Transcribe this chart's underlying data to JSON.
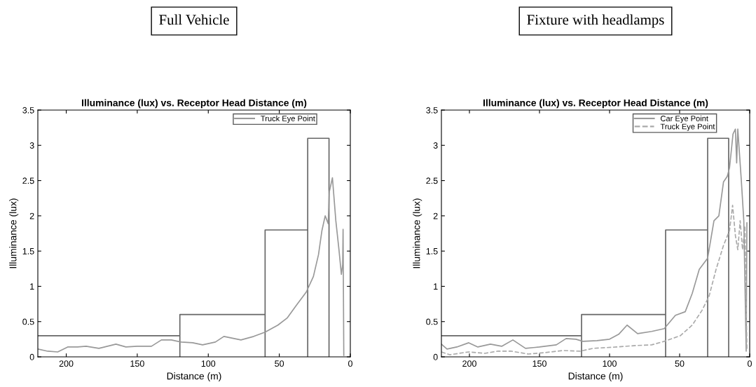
{
  "chart_data": [
    {
      "type": "line",
      "title": "Full Vehicle",
      "subtitle": "Illuminance (lux) vs. Receptor Head Distance (m)",
      "xlabel": "Distance (m)",
      "ylabel": "Illuminance (lux)",
      "xlim": [
        220,
        0
      ],
      "ylim": [
        0,
        3.5
      ],
      "xticks": [
        200,
        150,
        100,
        50,
        0
      ],
      "yticks": [
        0,
        0.5,
        1,
        1.5,
        2,
        2.5,
        3,
        3.5
      ],
      "legend": "top right",
      "series": [
        {
          "color": "#666666",
          "line_style": "solid",
          "x": [
            220,
            120,
            120,
            120,
            60,
            60,
            60,
            30,
            30,
            30,
            15,
            15
          ],
          "values": [
            0.3,
            0.3,
            0,
            0.6,
            0.6,
            0,
            1.8,
            1.8,
            0,
            3.1,
            3.1,
            0
          ]
        },
        {
          "name": "Truck Eye Point",
          "color": "#999999",
          "line_style": "solid",
          "x": [
            220,
            213,
            206,
            199,
            192,
            186,
            177,
            165,
            158,
            150,
            140,
            133,
            126,
            119,
            111,
            104,
            95,
            89,
            77,
            68,
            60,
            51,
            44.5,
            38,
            31,
            26,
            22.4,
            20,
            17.7,
            15.6,
            14.8,
            12.6,
            10.2,
            8,
            6.3,
            5.4,
            5.1,
            4.6
          ],
          "values": [
            0.11,
            0.08,
            0.07,
            0.14,
            0.14,
            0.15,
            0.12,
            0.18,
            0.14,
            0.15,
            0.15,
            0.24,
            0.24,
            0.21,
            0.2,
            0.17,
            0.21,
            0.29,
            0.24,
            0.29,
            0.35,
            0.45,
            0.55,
            0.73,
            0.92,
            1.14,
            1.45,
            1.79,
            2.0,
            1.89,
            2.34,
            2.54,
            1.93,
            1.52,
            1.17,
            1.31,
            1.81,
            0.02
          ]
        }
      ]
    },
    {
      "type": "line",
      "title": "Fixture with headlamps",
      "subtitle": "Illuminance (lux) vs. Receptor Head Distance (m)",
      "xlabel": "Distance (m)",
      "ylabel": "Illuminance (lux)",
      "xlim": [
        220,
        0
      ],
      "ylim": [
        0,
        3.5
      ],
      "xticks": [
        200,
        150,
        100,
        50,
        0
      ],
      "yticks": [
        0,
        0.5,
        1,
        1.5,
        2,
        2.5,
        3,
        3.5
      ],
      "legend": "top right",
      "series": [
        {
          "color": "#666666",
          "line_style": "solid",
          "x": [
            220,
            120,
            120,
            120,
            60,
            60,
            60,
            30,
            30,
            30,
            15,
            15
          ],
          "values": [
            0.3,
            0.3,
            0,
            0.6,
            0.6,
            0,
            1.8,
            1.8,
            0,
            3.1,
            3.1,
            0
          ]
        },
        {
          "name": "Car Eye Point",
          "color": "#999999",
          "line_style": "solid",
          "x": [
            220,
            216,
            209,
            200.5,
            194,
            185,
            177,
            169,
            160,
            150,
            138,
            131,
            124,
            119,
            109,
            100,
            93.5,
            87.5,
            80,
            70,
            61,
            53,
            46,
            41,
            36,
            30,
            25.5,
            22,
            18.7,
            16,
            14.4,
            11.9,
            10.2,
            9.3,
            8.5,
            6,
            4.2,
            2.5,
            2
          ],
          "values": [
            0.18,
            0.11,
            0.14,
            0.2,
            0.14,
            0.18,
            0.15,
            0.24,
            0.12,
            0.14,
            0.17,
            0.26,
            0.25,
            0.22,
            0.23,
            0.25,
            0.32,
            0.45,
            0.33,
            0.36,
            0.4,
            0.59,
            0.64,
            0.9,
            1.24,
            1.4,
            1.93,
            2.0,
            2.48,
            2.56,
            2.68,
            3.16,
            3.23,
            2.75,
            3.23,
            2.51,
            1.93,
            0.08,
            1.9
          ]
        },
        {
          "name": "Truck Eye Point",
          "color": "#aaaaaa",
          "line_style": "dashed",
          "x": [
            220,
            214,
            200.5,
            189,
            180,
            170,
            158,
            146,
            133,
            121,
            112,
            95,
            81.5,
            70,
            61,
            49.5,
            41,
            34,
            29,
            24,
            18.7,
            14.4,
            12.2,
            10.2,
            8.5,
            6.8,
            5.1,
            3.4,
            2
          ],
          "values": [
            0.07,
            0.03,
            0.07,
            0.05,
            0.08,
            0.08,
            0.04,
            0.06,
            0.09,
            0.08,
            0.12,
            0.14,
            0.16,
            0.17,
            0.22,
            0.3,
            0.45,
            0.66,
            0.86,
            1.24,
            1.58,
            1.79,
            2.15,
            1.72,
            1.52,
            1.93,
            1.52,
            1.86,
            0.11
          ]
        }
      ]
    }
  ]
}
